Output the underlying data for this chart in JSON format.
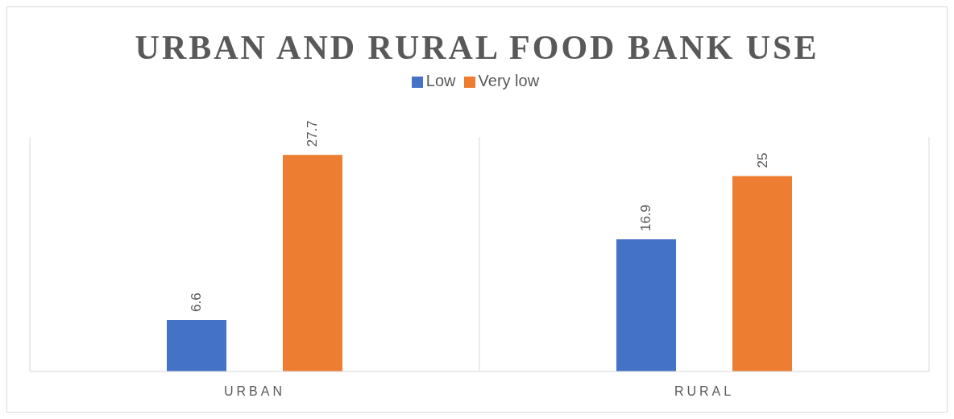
{
  "chart_data": {
    "type": "bar",
    "title": "URBAN AND RURAL FOOD BANK USE",
    "categories": [
      "URBAN",
      "RURAL"
    ],
    "series": [
      {
        "name": "Low",
        "color": "#4472c4",
        "values": [
          6.6,
          16.9
        ]
      },
      {
        "name": "Very low",
        "color": "#ed7d31",
        "values": [
          27.7,
          25
        ]
      }
    ],
    "ylim": [
      0,
      30
    ],
    "tick_labels": "x",
    "data_labels": true,
    "grid": "x",
    "legend": "top"
  }
}
